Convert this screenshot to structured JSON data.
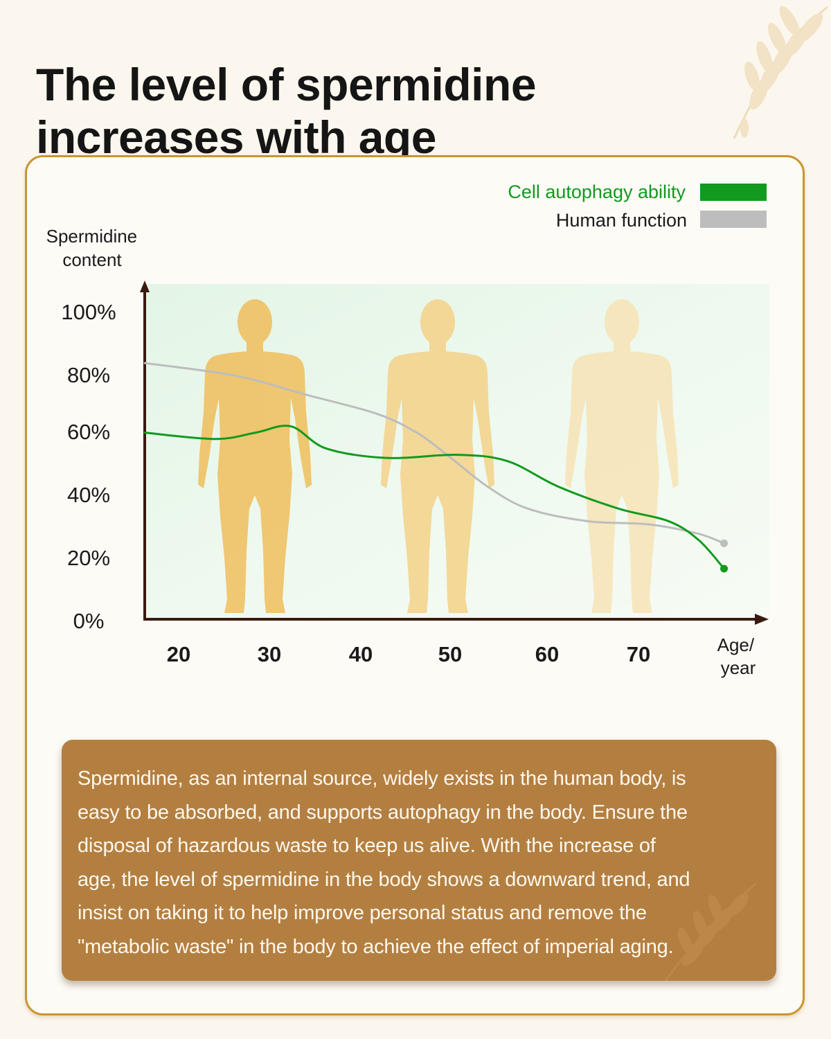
{
  "title": {
    "line1": "The level of spermidine",
    "line2": "increases with age"
  },
  "colors": {
    "autophagy": "#119a1e",
    "function": "#bdbdbd",
    "axis": "#3a1a10",
    "box": "#b37f41",
    "border": "#c9952f"
  },
  "chart_data": {
    "type": "line",
    "title": "The level of spermidine increases with age",
    "xlabel": "Age/ year",
    "ylabel": "Spermidine content",
    "x_ticks": [
      "20",
      "30",
      "40",
      "50",
      "60",
      "70"
    ],
    "y_ticks": [
      "100%",
      "80%",
      "60%",
      "40%",
      "20%",
      "0%"
    ],
    "xlim": [
      16,
      78
    ],
    "ylim": [
      0,
      106
    ],
    "legend_position": "top-right",
    "series": [
      {
        "name": "Cell autophagy ability",
        "color": "#119a1e",
        "x": [
          16,
          23,
          27,
          30.5,
          34,
          40,
          47,
          52,
          57,
          63,
          68,
          71,
          73.5
        ],
        "y": [
          59,
          57,
          59,
          61,
          54,
          51,
          52,
          50,
          42,
          35,
          31,
          25,
          16
        ]
      },
      {
        "name": "Human function",
        "color": "#bdbdbd",
        "x": [
          16,
          25,
          32,
          39,
          43,
          46,
          50,
          54,
          60,
          66,
          71,
          73.5
        ],
        "y": [
          81,
          77,
          71,
          65,
          59,
          52,
          42,
          35,
          31,
          30,
          27,
          24
        ]
      }
    ]
  },
  "info": {
    "lines": [
      "Spermidine, as an internal source, widely exists in the human body, is",
      "easy to be absorbed, and supports autophagy in the body. Ensure the",
      "disposal of hazardous waste to keep us alive. With the increase of",
      "age, the level of spermidine in the body shows a downward trend, and",
      "insist on taking it to help improve personal status and remove the",
      "\"metabolic waste\" in the body to achieve the effect of imperial aging."
    ]
  }
}
